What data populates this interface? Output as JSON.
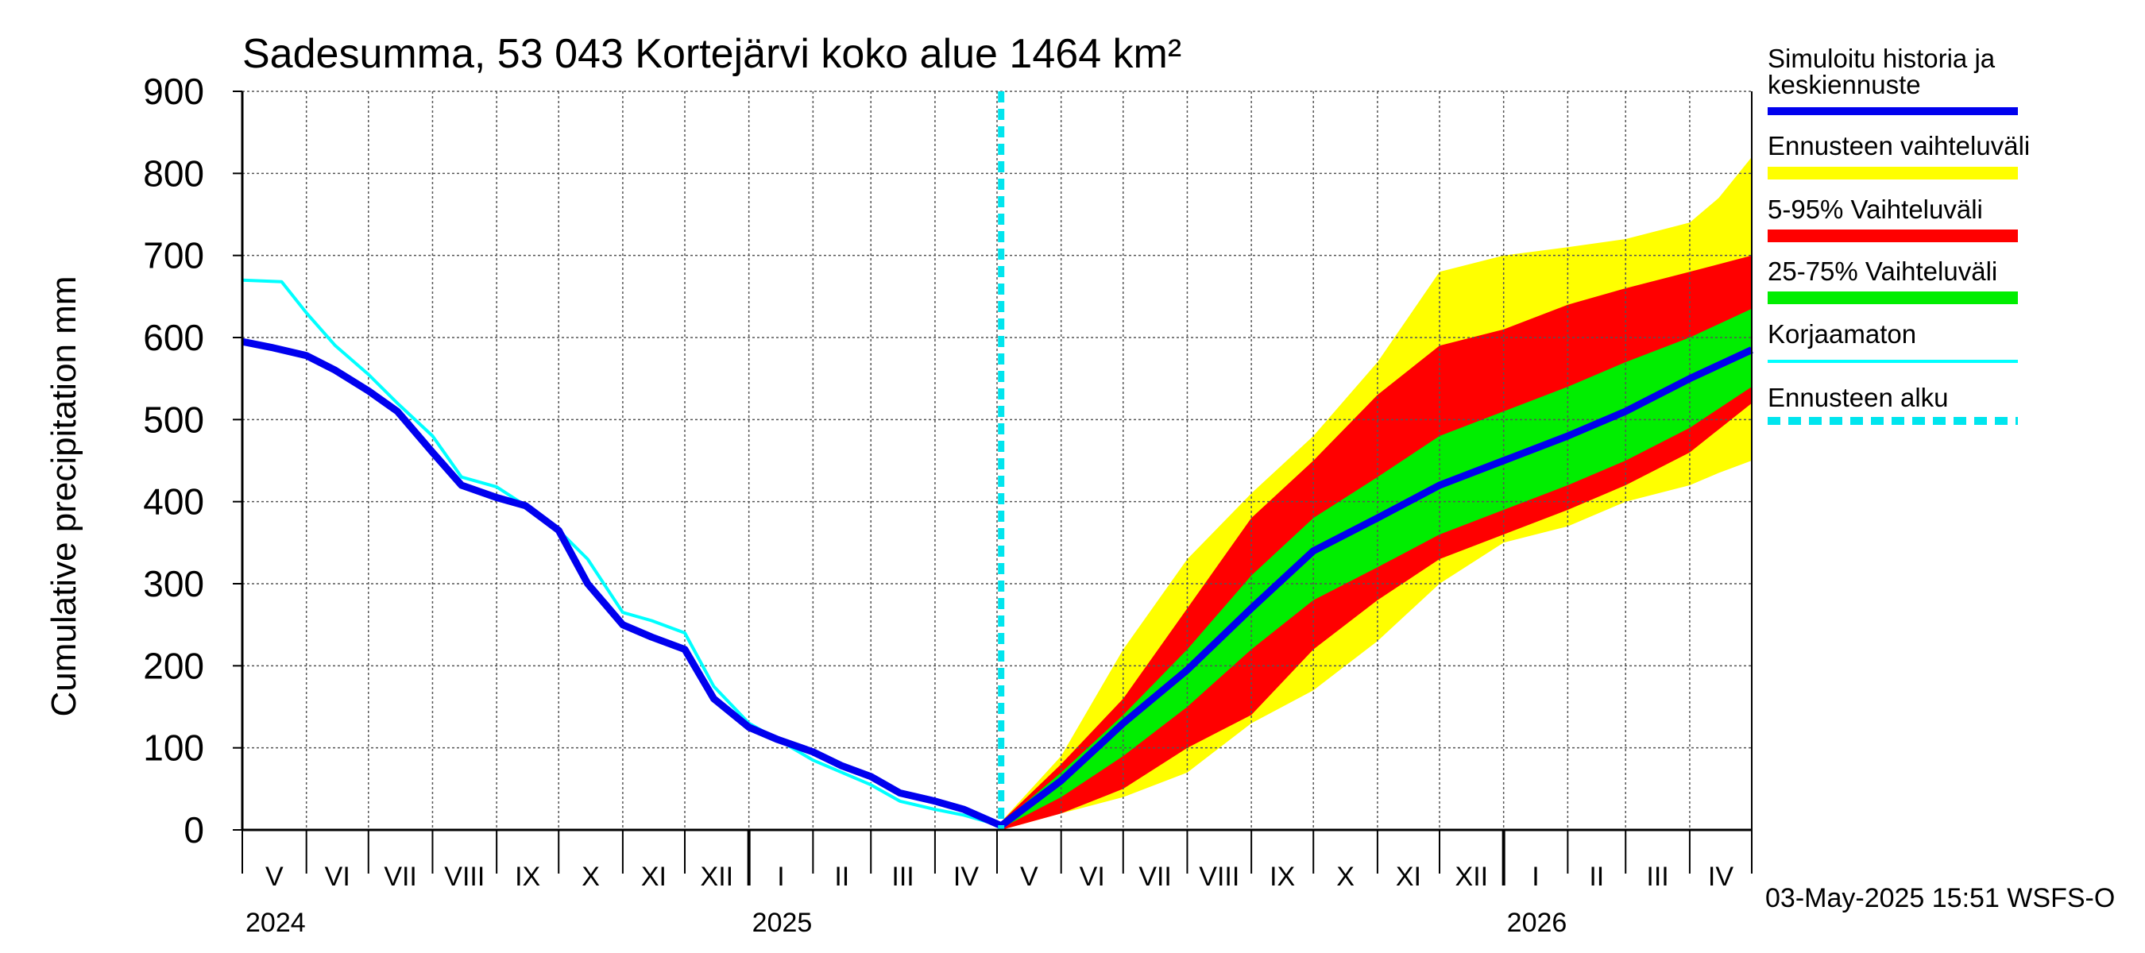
{
  "chart_data": {
    "type": "area",
    "title": "Sadesumma, 53 043 Kortejärvi koko alue 1464 km²",
    "ylabel": "Cumulative precipitation   mm",
    "xlabel": "",
    "ylim": [
      0,
      900
    ],
    "yticks": [
      0,
      100,
      200,
      300,
      400,
      500,
      600,
      700,
      800,
      900
    ],
    "xlim": [
      "2024-05-01",
      "2026-05-01"
    ],
    "grid": true,
    "legend_position": "right",
    "forecast_start": "2025-05-03",
    "month_labels": [
      "V",
      "VI",
      "VII",
      "VIII",
      "IX",
      "X",
      "XI",
      "XII",
      "I",
      "II",
      "III",
      "IV",
      "V",
      "VI",
      "VII",
      "VIII",
      "IX",
      "X",
      "XI",
      "XII",
      "I",
      "II",
      "III",
      "IV"
    ],
    "year_labels": [
      "2024",
      "2025",
      "2026"
    ],
    "timestamp": "03-May-2025 15:51 WSFS-O",
    "legend": [
      {
        "label": "Simuloitu historia ja keskiennuste",
        "color": "#0000ee",
        "style": "thick"
      },
      {
        "label": "Ennusteen vaihteluväli",
        "color": "#ffff00",
        "style": "band"
      },
      {
        "label": "5-95% Vaihteluväli",
        "color": "#ff0000",
        "style": "band"
      },
      {
        "label": "25-75% Vaihteluväli",
        "color": "#00ee00",
        "style": "band"
      },
      {
        "label": "Korjaamaton",
        "color": "#00ffff",
        "style": "thin"
      },
      {
        "label": "Ennusteen alku",
        "color": "#00e5ee",
        "style": "dashed"
      }
    ],
    "series": [
      {
        "name": "Simuloitu historia ja keskiennuste",
        "color": "#0000ee",
        "x": [
          "2024-05-01",
          "2024-05-15",
          "2024-06-01",
          "2024-06-15",
          "2024-07-01",
          "2024-07-15",
          "2024-08-01",
          "2024-08-15",
          "2024-09-01",
          "2024-09-15",
          "2024-10-01",
          "2024-10-15",
          "2024-11-01",
          "2024-11-15",
          "2024-12-01",
          "2024-12-15",
          "2025-01-01",
          "2025-01-15",
          "2025-02-01",
          "2025-02-15",
          "2025-03-01",
          "2025-03-15",
          "2025-04-01",
          "2025-04-15",
          "2025-05-03",
          "2025-06-01",
          "2025-07-01",
          "2025-08-01",
          "2025-09-01",
          "2025-10-01",
          "2025-11-01",
          "2025-12-01",
          "2026-01-01",
          "2026-02-01",
          "2026-03-01",
          "2026-04-01",
          "2026-05-01"
        ],
        "values": [
          595,
          588,
          578,
          560,
          535,
          510,
          460,
          420,
          405,
          395,
          365,
          300,
          250,
          235,
          220,
          160,
          125,
          110,
          95,
          78,
          65,
          45,
          35,
          25,
          5,
          60,
          130,
          195,
          270,
          340,
          380,
          420,
          450,
          480,
          510,
          550,
          585
        ]
      },
      {
        "name": "Korjaamaton",
        "color": "#00ffff",
        "x": [
          "2024-05-01",
          "2024-05-20",
          "2024-06-01",
          "2024-06-15",
          "2024-07-01",
          "2024-07-15",
          "2024-08-01",
          "2024-08-15",
          "2024-09-01",
          "2024-09-15",
          "2024-10-01",
          "2024-10-15",
          "2024-11-01",
          "2024-11-15",
          "2024-12-01",
          "2024-12-15",
          "2025-01-01",
          "2025-01-15",
          "2025-02-01",
          "2025-02-15",
          "2025-03-01",
          "2025-03-15",
          "2025-04-01",
          "2025-04-15",
          "2025-05-03"
        ],
        "values": [
          670,
          668,
          630,
          590,
          555,
          520,
          480,
          430,
          418,
          395,
          365,
          330,
          265,
          255,
          240,
          175,
          130,
          110,
          85,
          70,
          55,
          35,
          25,
          18,
          5
        ]
      }
    ],
    "bands": [
      {
        "name": "Ennusteen vaihteluväli",
        "color": "#ffff00",
        "x": [
          "2025-05-03",
          "2025-06-01",
          "2025-07-01",
          "2025-08-01",
          "2025-09-01",
          "2025-10-01",
          "2025-11-01",
          "2025-12-01",
          "2026-01-01",
          "2026-02-01",
          "2026-03-01",
          "2026-04-01",
          "2026-04-15",
          "2026-05-01"
        ],
        "upper": [
          10,
          90,
          220,
          330,
          410,
          480,
          570,
          680,
          700,
          710,
          720,
          740,
          770,
          820
        ],
        "lower": [
          0,
          20,
          40,
          70,
          130,
          170,
          230,
          300,
          350,
          370,
          400,
          420,
          435,
          450
        ]
      },
      {
        "name": "5-95% Vaihteluväli",
        "color": "#ff0000",
        "x": [
          "2025-05-03",
          "2025-06-01",
          "2025-07-01",
          "2025-08-01",
          "2025-09-01",
          "2025-10-01",
          "2025-11-01",
          "2025-12-01",
          "2026-01-01",
          "2026-02-01",
          "2026-03-01",
          "2026-04-01",
          "2026-05-01"
        ],
        "upper": [
          10,
          80,
          160,
          270,
          380,
          450,
          530,
          590,
          610,
          640,
          660,
          680,
          700
        ],
        "lower": [
          0,
          20,
          50,
          100,
          140,
          220,
          280,
          330,
          360,
          390,
          420,
          460,
          520
        ]
      },
      {
        "name": "25-75% Vaihteluväli",
        "color": "#00ee00",
        "x": [
          "2025-05-03",
          "2025-06-01",
          "2025-07-01",
          "2025-08-01",
          "2025-09-01",
          "2025-10-01",
          "2025-11-01",
          "2025-12-01",
          "2026-01-01",
          "2026-02-01",
          "2026-03-01",
          "2026-04-01",
          "2026-05-01"
        ],
        "upper": [
          8,
          70,
          140,
          220,
          310,
          380,
          430,
          480,
          510,
          540,
          570,
          600,
          635
        ],
        "lower": [
          2,
          40,
          90,
          150,
          220,
          280,
          320,
          360,
          390,
          420,
          450,
          490,
          540
        ]
      }
    ]
  }
}
